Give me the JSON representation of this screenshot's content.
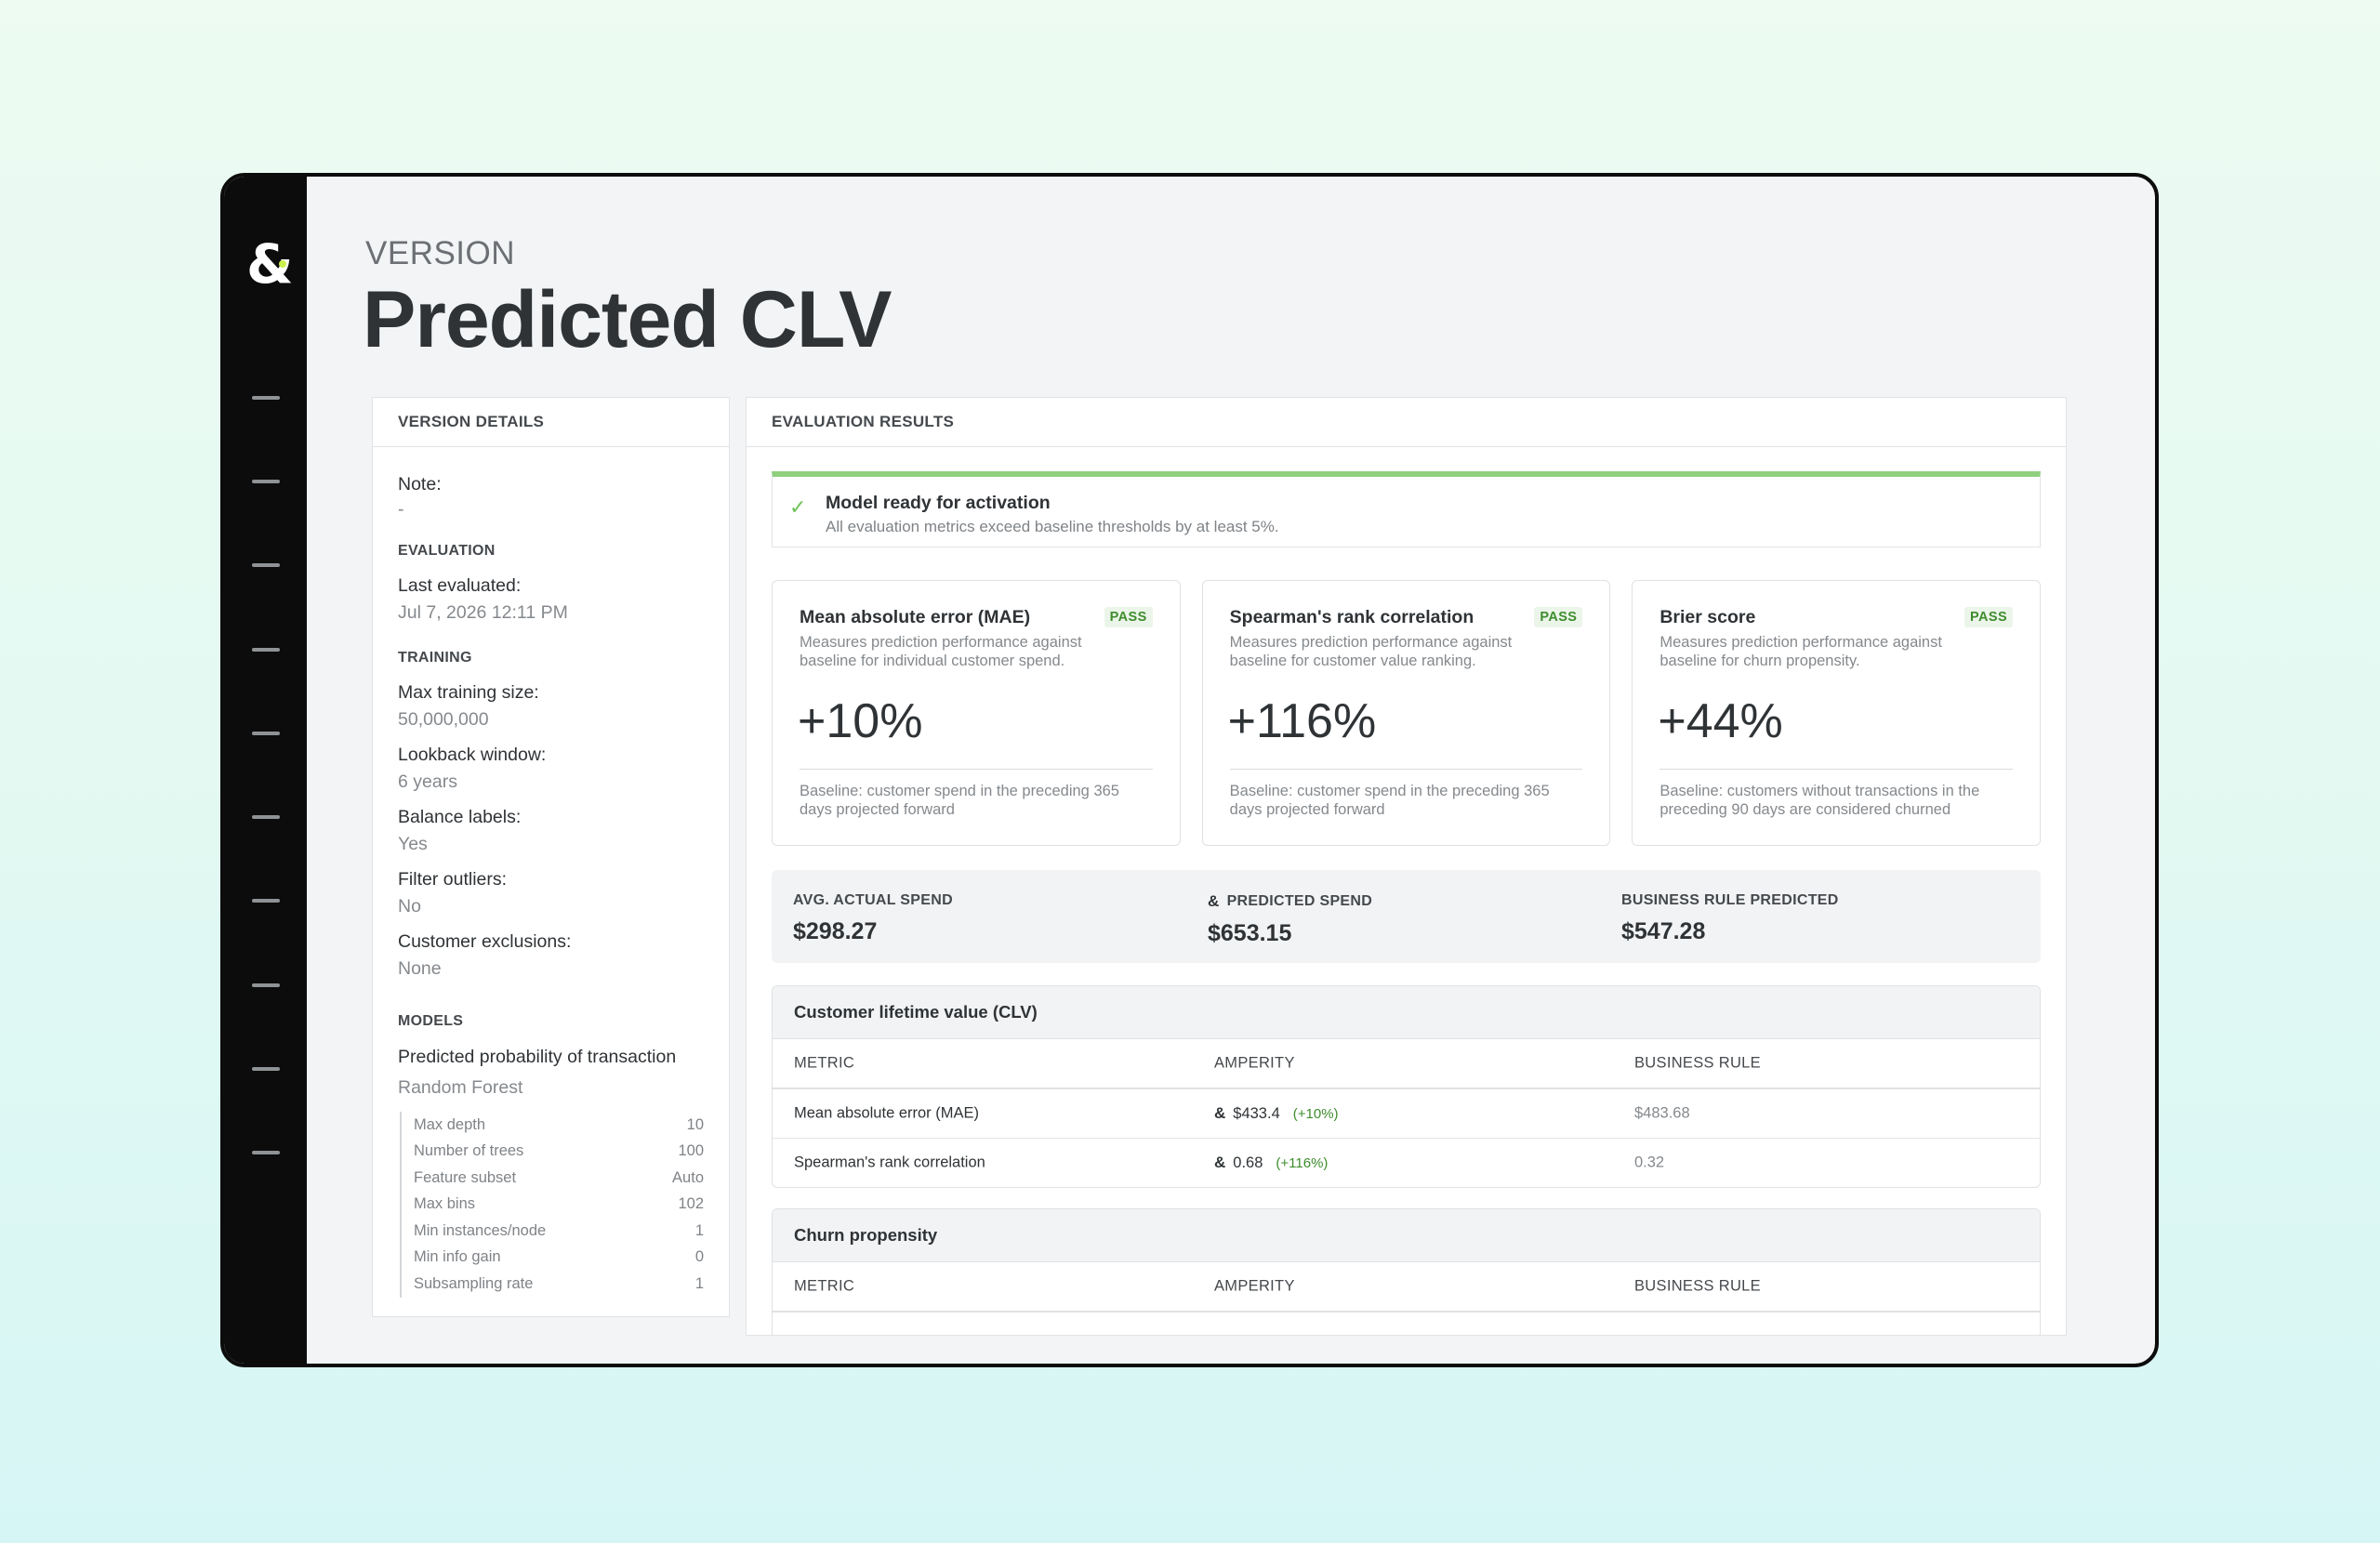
{
  "page": {
    "eyebrow": "VERSION",
    "title": "Predicted CLV"
  },
  "brand": {
    "logo_glyph": "&",
    "accent_color": "#c9f04b"
  },
  "version_details": {
    "header": "VERSION DETAILS",
    "note_label": "Note:",
    "note_value": "-",
    "evaluation_section": "EVALUATION",
    "last_evaluated_label": "Last evaluated:",
    "last_evaluated_value": "Jul 7, 2026 12:11 PM",
    "training_section": "TRAINING",
    "training_fields": [
      {
        "label": "Max training size:",
        "value": "50,000,000"
      },
      {
        "label": "Lookback window:",
        "value": "6 years"
      },
      {
        "label": "Balance labels:",
        "value": "Yes"
      },
      {
        "label": "Filter outliers:",
        "value": "No"
      },
      {
        "label": "Customer exclusions:",
        "value": "None"
      }
    ],
    "models_section": "MODELS",
    "model_name": "Predicted probability of transaction",
    "model_type": "Random Forest",
    "params": [
      {
        "name": "Max depth",
        "value": "10"
      },
      {
        "name": "Number of trees",
        "value": "100"
      },
      {
        "name": "Feature subset",
        "value": "Auto"
      },
      {
        "name": "Max bins",
        "value": "102"
      },
      {
        "name": "Min instances/node",
        "value": "1"
      },
      {
        "name": "Min info gain",
        "value": "0"
      },
      {
        "name": "Subsampling rate",
        "value": "1"
      }
    ]
  },
  "evaluation": {
    "header": "EVALUATION RESULTS",
    "alert": {
      "title": "Model ready for activation",
      "subtitle": "All evaluation metrics exceed baseline thresholds by at least 5%."
    },
    "cards": [
      {
        "title": "Mean absolute error (MAE)",
        "badge": "PASS",
        "description": "Measures prediction performance against baseline for individual customer spend.",
        "value": "+10%",
        "baseline": "Baseline: customer spend in the preceding 365 days projected forward"
      },
      {
        "title": "Spearman's rank correlation",
        "badge": "PASS",
        "description": "Measures prediction performance against baseline for customer value ranking.",
        "value": "+116%",
        "baseline": "Baseline: customer spend in the preceding 365 days projected forward"
      },
      {
        "title": "Brier score",
        "badge": "PASS",
        "description": "Measures prediction performance against baseline for churn propensity.",
        "value": "+44%",
        "baseline": "Baseline: customers without transactions in the preceding 90 days are considered churned"
      }
    ],
    "stats": [
      {
        "label": "AVG. ACTUAL SPEND",
        "value": "$298.27"
      },
      {
        "label": "PREDICTED SPEND",
        "value": "$653.15"
      },
      {
        "label": "BUSINESS RULE PREDICTED",
        "value": "$547.28"
      }
    ],
    "clv_table": {
      "title": "Customer lifetime value (CLV)",
      "columns": [
        "METRIC",
        "AMPERITY",
        "BUSINESS RULE"
      ],
      "rows": [
        {
          "metric": "Mean absolute error (MAE)",
          "amperity": "$433.4",
          "delta": "(+10%)",
          "business_rule": "$483.68"
        },
        {
          "metric": "Spearman's rank correlation",
          "amperity": "0.68",
          "delta": "(+116%)",
          "business_rule": "0.32"
        }
      ]
    },
    "churn_table": {
      "title": "Churn propensity",
      "columns": [
        "METRIC",
        "AMPERITY",
        "BUSINESS RULE"
      ]
    }
  }
}
